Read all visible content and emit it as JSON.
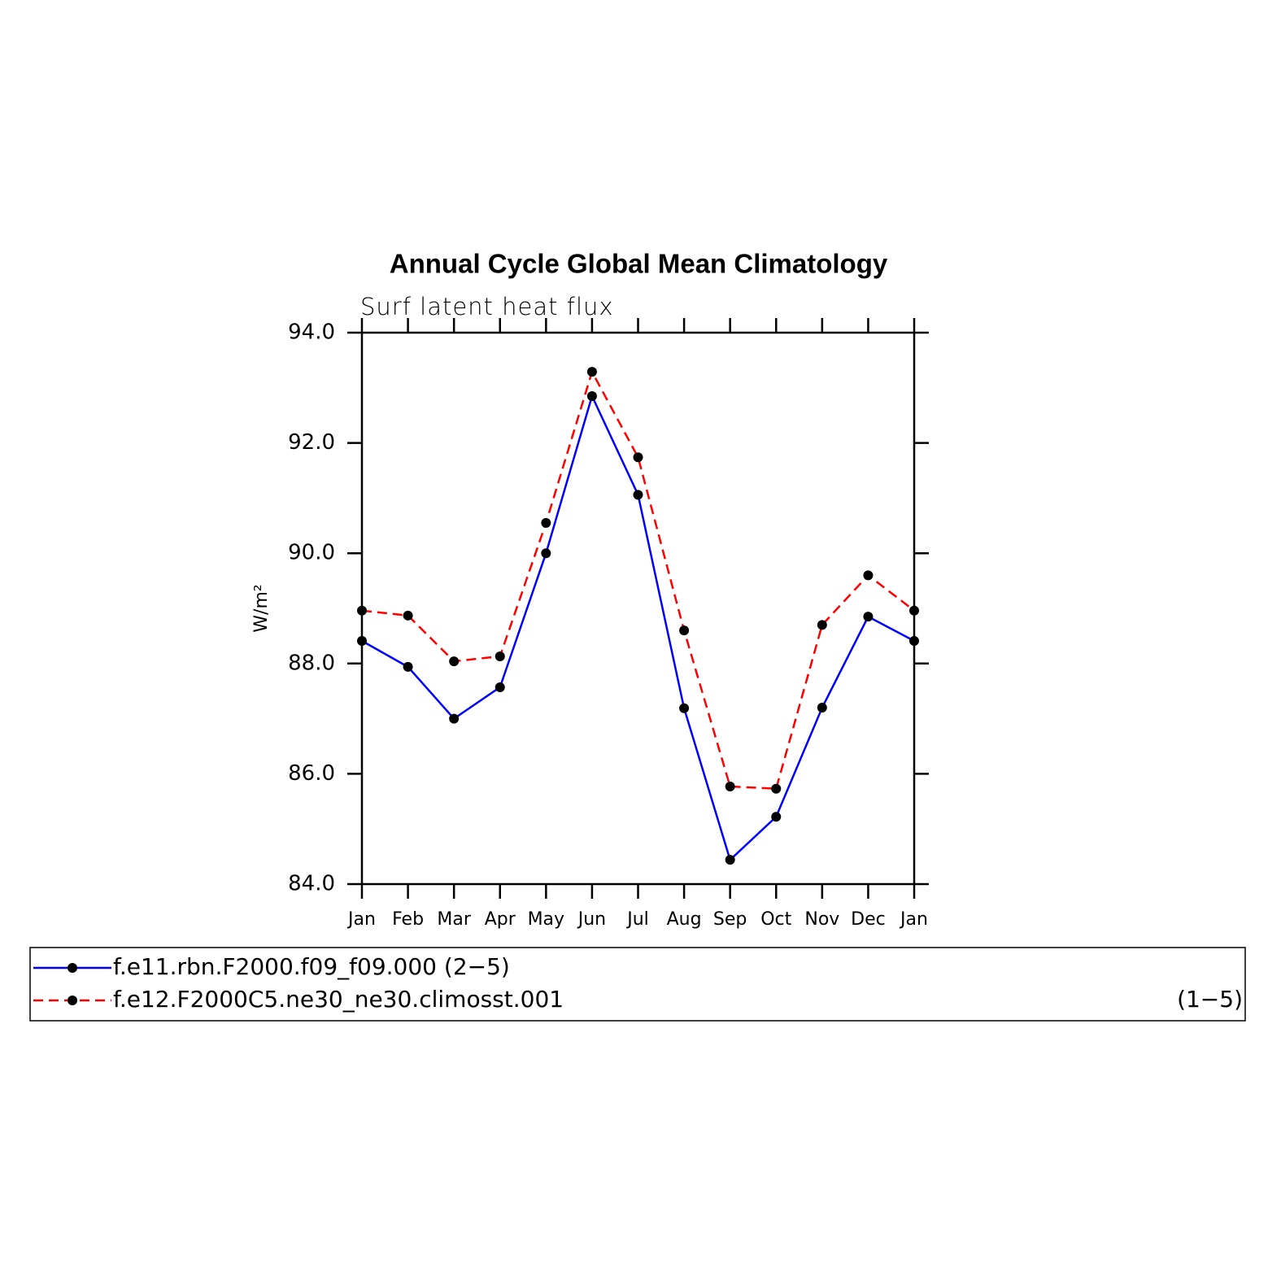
{
  "chart_data": {
    "type": "line",
    "title": "Annual Cycle Global Mean Climatology",
    "subtitle": "Surf latent heat flux",
    "y_label": "W/m²",
    "categories": [
      "Jan",
      "Feb",
      "Mar",
      "Apr",
      "May",
      "Jun",
      "Jul",
      "Aug",
      "Sep",
      "Oct",
      "Nov",
      "Dec",
      "Jan"
    ],
    "series": [
      {
        "name": "f.e11.rbn.F2000.f09_f09.000 (2−5)",
        "color": "#0000ff",
        "dash": "none",
        "values": [
          88.41,
          87.94,
          87.0,
          87.57,
          90.0,
          92.85,
          91.06,
          87.19,
          84.44,
          85.22,
          87.2,
          88.85,
          88.41
        ]
      },
      {
        "name": "f.e12.F2000C5.ne30_ne30.climosst.001",
        "note": "(1−5)",
        "color": "#ff0000",
        "dash": "12 7",
        "values": [
          88.96,
          88.87,
          88.04,
          88.13,
          90.55,
          93.29,
          91.74,
          88.6,
          85.77,
          85.73,
          88.7,
          89.6,
          88.96
        ]
      }
    ],
    "ylim": [
      84,
      94
    ],
    "yticks": [
      {
        "value": 84,
        "label": "84.0"
      },
      {
        "value": 86,
        "label": "86.0"
      },
      {
        "value": 88,
        "label": "88.0"
      },
      {
        "value": 90,
        "label": "90.0"
      },
      {
        "value": 92,
        "label": "92.0"
      },
      {
        "value": 94,
        "label": "94.0"
      }
    ],
    "grid": false
  }
}
